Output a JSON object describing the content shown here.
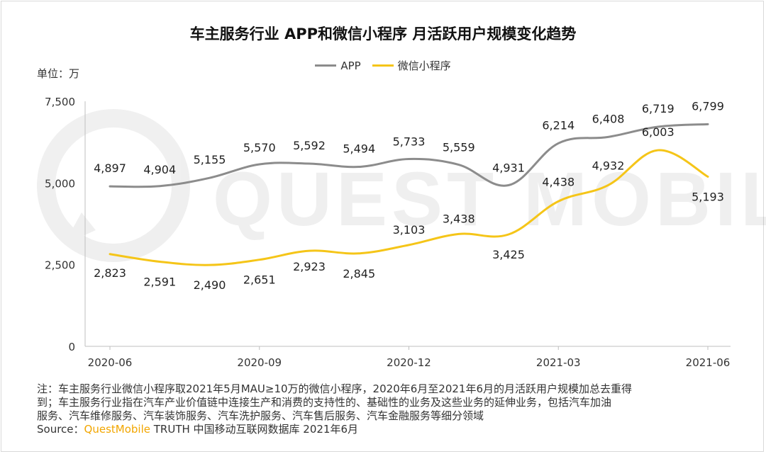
{
  "chart_data": {
    "type": "line",
    "title": "车主服务行业 APP和微信小程序 月活跃用户规模变化趋势",
    "unit_label": "单位：万",
    "x": [
      "2020-06",
      "2020-07",
      "2020-08",
      "2020-09",
      "2020-10",
      "2020-11",
      "2020-12",
      "2021-01",
      "2021-02",
      "2021-03",
      "2021-04",
      "2021-05",
      "2021-06"
    ],
    "x_tick_labels": [
      "2020-06",
      "2020-09",
      "2020-12",
      "2021-03",
      "2021-06"
    ],
    "ylim": [
      0,
      7500
    ],
    "y_ticks": [
      0,
      2500,
      5000,
      7500
    ],
    "y_tick_labels": [
      "0",
      "2,500",
      "5,000",
      "7,500"
    ],
    "series": [
      {
        "name": "APP",
        "color": "#8c8c8c",
        "values": [
          4897,
          4904,
          5155,
          5570,
          5592,
          5494,
          5733,
          5559,
          4931,
          6214,
          6408,
          6719,
          6799
        ],
        "labels": [
          "4,897",
          "4,904",
          "5,155",
          "5,570",
          "5,592",
          "5,494",
          "5,733",
          "5,559",
          "4,931",
          "6,214",
          "6,408",
          "6,719",
          "6,799"
        ]
      },
      {
        "name": "微信小程序",
        "color": "#f5c518",
        "values": [
          2823,
          2591,
          2490,
          2651,
          2923,
          2845,
          3103,
          3438,
          3425,
          4438,
          4932,
          6003,
          5193
        ],
        "labels": [
          "2,823",
          "2,591",
          "2,490",
          "2,651",
          "2,923",
          "2,845",
          "3,103",
          "3,438",
          "3,425",
          "4,438",
          "4,932",
          "6,003",
          "5,193"
        ]
      }
    ],
    "legend_position": "top-center",
    "grid": false,
    "watermark": "QUEST MOBILE"
  },
  "notes": {
    "line1": "注：车主服务行业微信小程序取2021年5月MAU≥10万的微信小程序，2020年6月至2021年6月的月活跃用户规模加总去重得",
    "line2": "到；车主服务行业指在汽车产业价值链中连接生产和消费的支持性的、基础性的业务及这些业务的延伸业务，包括汽车加油",
    "line3": "服务、汽车维修服务、汽车装饰服务、汽车洗护服务、汽车售后服务、汽车金融服务等细分领域",
    "source_prefix": "Source：",
    "source_brand": "QuestMobile",
    "source_suffix": " TRUTH 中国移动互联网数据库 2021年6月"
  }
}
